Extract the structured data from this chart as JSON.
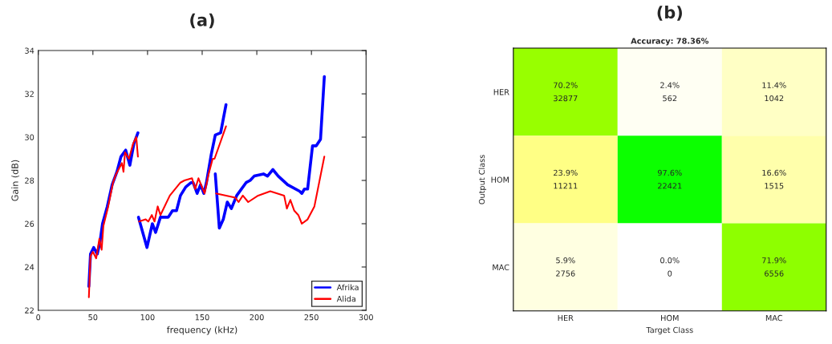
{
  "chart_data": [
    {
      "type": "line",
      "title": "(a)",
      "xlabel": "frequency (kHz)",
      "ylabel": "Gain (dB)",
      "xlim": [
        0,
        300
      ],
      "ylim": [
        22,
        34
      ],
      "xticks": [
        0,
        50,
        100,
        150,
        200,
        250,
        300
      ],
      "yticks": [
        22,
        24,
        26,
        28,
        30,
        32,
        34
      ],
      "grid": false,
      "legend": "bottom right",
      "line_style": "solid",
      "marker": "none",
      "series": [
        {
          "name": "Afrika",
          "color": "#0000ff",
          "x": [
            46.3,
            47.8,
            50.7,
            54,
            56.6,
            58.8,
            63.2,
            67.6,
            72,
            75.7,
            80,
            83.8,
            87.5,
            91.2
          ],
          "values": [
            23.1,
            24.6,
            24.9,
            24.6,
            25.2,
            26.0,
            26.8,
            27.8,
            28.4,
            29.1,
            29.4,
            28.7,
            29.7,
            30.2
          ]
        },
        {
          "name": "Alida",
          "color": "#ff0000",
          "x": [
            46.3,
            47.8,
            50,
            53,
            55.9,
            58,
            59.6,
            64,
            68.4,
            71.3,
            76.5,
            78,
            79.4,
            83,
            86.8,
            89.7,
            91.2
          ],
          "values": [
            22.6,
            24.5,
            24.7,
            24.4,
            25.3,
            24.8,
            25.9,
            26.8,
            27.9,
            28.3,
            28.8,
            28.4,
            29.3,
            29.0,
            29.7,
            30.0,
            29.1
          ]
        },
        {
          "color": "#0000ff",
          "x": [
            91.7,
            99.5,
            104.4,
            107.4,
            111.8,
            119,
            122.8,
            126.5,
            130.1,
            135,
            139.9,
            141.7,
            145.4,
            148.5,
            151.5,
            153.9,
            158.3,
            162,
            166.9,
            171.8
          ],
          "values": [
            26.3,
            24.9,
            26.0,
            25.6,
            26.3,
            26.3,
            26.6,
            26.6,
            27.3,
            27.7,
            27.9,
            27.9,
            27.4,
            27.8,
            27.4,
            27.9,
            29.2,
            30.1,
            30.2,
            31.5
          ]
        },
        {
          "color": "#ff0000",
          "x": [
            92.2,
            98.3,
            100.7,
            103.9,
            106.4,
            109.3,
            111.8,
            120.4,
            130.1,
            133.8,
            140.7,
            143.6,
            146.6,
            149.8,
            152.2,
            155.9,
            159.6,
            161.3,
            171.8
          ],
          "values": [
            26.1,
            26.2,
            26.1,
            26.4,
            26.1,
            26.8,
            26.4,
            27.3,
            27.9,
            28.0,
            28.1,
            27.6,
            28.1,
            27.7,
            27.4,
            28.3,
            29.0,
            29.0,
            30.5
          ]
        },
        {
          "color": "#0000ff",
          "x": [
            162,
            165.7,
            169.3,
            173,
            176.7,
            181.6,
            190.2,
            193.9,
            197.6,
            206.1,
            209.8,
            214.7,
            219.6,
            228.2,
            239.2,
            241.2,
            243.6,
            246.5,
            251,
            254.4,
            258.3,
            261.8
          ],
          "values": [
            28.3,
            25.8,
            26.2,
            27.0,
            26.7,
            27.3,
            27.9,
            28.0,
            28.2,
            28.3,
            28.2,
            28.5,
            28.2,
            27.8,
            27.5,
            27.4,
            27.6,
            27.6,
            29.6,
            29.6,
            29.9,
            32.8
          ]
        },
        {
          "color": "#ff0000",
          "x": [
            162.7,
            180.4,
            183.3,
            187.2,
            192.1,
            201.2,
            212.3,
            225,
            227.5,
            230.7,
            234.3,
            238,
            241.2,
            246.5,
            252.7,
            261.8
          ],
          "values": [
            27.4,
            27.2,
            27.0,
            27.3,
            27.0,
            27.3,
            27.5,
            27.3,
            26.7,
            27.1,
            26.6,
            26.4,
            26.0,
            26.2,
            26.8,
            29.1
          ]
        }
      ]
    },
    {
      "type": "heatmap",
      "title": "(b)",
      "subtitle": "Accuracy: 78.36%",
      "xlabel": "Target Class",
      "ylabel": "Output Class",
      "categories": [
        "HER",
        "HOM",
        "MAC"
      ],
      "y_categories": [
        "HER",
        "HOM",
        "MAC"
      ],
      "colors": [
        "#ffffff",
        "#ffff80",
        "#ffff00",
        "#00ff00"
      ],
      "cells": [
        [
          70.2,
          2.4,
          11.4
        ],
        [
          23.9,
          97.6,
          16.6
        ],
        [
          5.9,
          0.0,
          71.9
        ]
      ],
      "cell_labels": [
        [
          "70.2%",
          "2.4%",
          "11.4%"
        ],
        [
          "23.9%",
          "97.6%",
          "16.6%"
        ],
        [
          "5.9%",
          "0.0%",
          "71.9%"
        ]
      ],
      "annotations": [
        "32877",
        "562",
        "1042",
        "11211",
        "22421",
        "1515",
        "2756",
        "0",
        "6556"
      ]
    }
  ]
}
